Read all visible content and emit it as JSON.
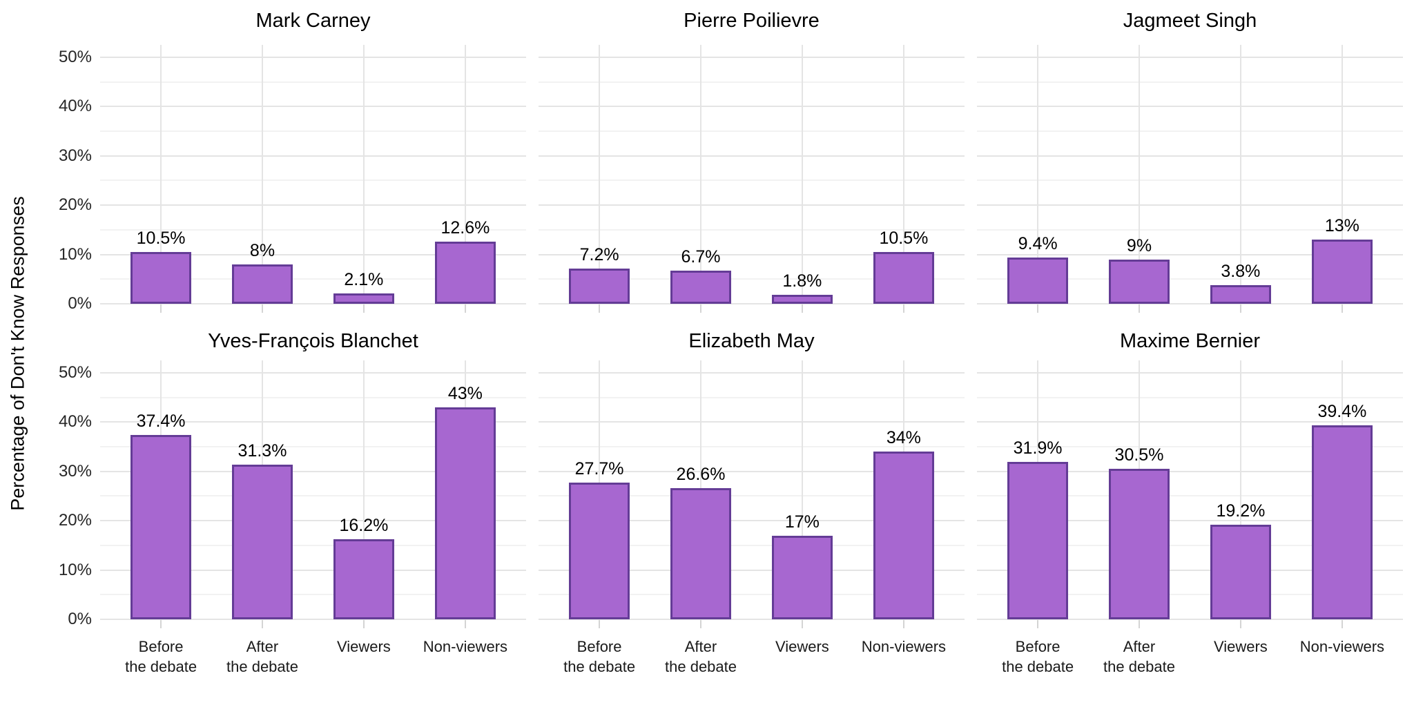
{
  "y_axis_title": "Percentage of Don't Know Responses",
  "colors": {
    "bar_fill": "#A767D0",
    "bar_border": "#643C96",
    "grid_major": "#E4E4E4",
    "grid_minor": "#F2F2F2",
    "axis_tick": "#D4D4D4",
    "text": "#000000",
    "background": "#FFFFFF"
  },
  "chart_data": {
    "type": "bar",
    "layout": "2 rows x 3 columns of facets, shared axes",
    "title": "",
    "xlabel": "",
    "ylabel": "Percentage of Don't Know Responses",
    "ylim": [
      0,
      50
    ],
    "grid": "major horizontal every 10%, minor every 5%, vertical at each category",
    "legend": "none",
    "y_ticks": [
      "0%",
      "10%",
      "20%",
      "30%",
      "40%",
      "50%"
    ],
    "y_major_pct": [
      0,
      10,
      20,
      30,
      40,
      50
    ],
    "y_minor_pct": [
      5,
      15,
      25,
      35,
      45
    ],
    "categories": [
      [
        "Before",
        "the debate"
      ],
      [
        "After",
        "the debate"
      ],
      [
        "Viewers"
      ],
      [
        "Non-viewers"
      ]
    ],
    "facets": [
      {
        "title": "Mark Carney",
        "values": [
          10.5,
          8,
          2.1,
          12.6
        ],
        "labels": [
          "10.5%",
          "8%",
          "2.1%",
          "12.6%"
        ]
      },
      {
        "title": "Pierre Poilievre",
        "values": [
          7.2,
          6.7,
          1.8,
          10.5
        ],
        "labels": [
          "7.2%",
          "6.7%",
          "1.8%",
          "10.5%"
        ]
      },
      {
        "title": "Jagmeet Singh",
        "values": [
          9.4,
          9,
          3.8,
          13
        ],
        "labels": [
          "9.4%",
          "9%",
          "3.8%",
          "13%"
        ]
      },
      {
        "title": "Yves-François Blanchet",
        "values": [
          37.4,
          31.3,
          16.2,
          43
        ],
        "labels": [
          "37.4%",
          "31.3%",
          "16.2%",
          "43%"
        ]
      },
      {
        "title": "Elizabeth May",
        "values": [
          27.7,
          26.6,
          17,
          34
        ],
        "labels": [
          "27.7%",
          "26.6%",
          "17%",
          "34%"
        ]
      },
      {
        "title": "Maxime Bernier",
        "values": [
          31.9,
          30.5,
          19.2,
          39.4
        ],
        "labels": [
          "31.9%",
          "30.5%",
          "19.2%",
          "39.4%"
        ]
      }
    ]
  }
}
